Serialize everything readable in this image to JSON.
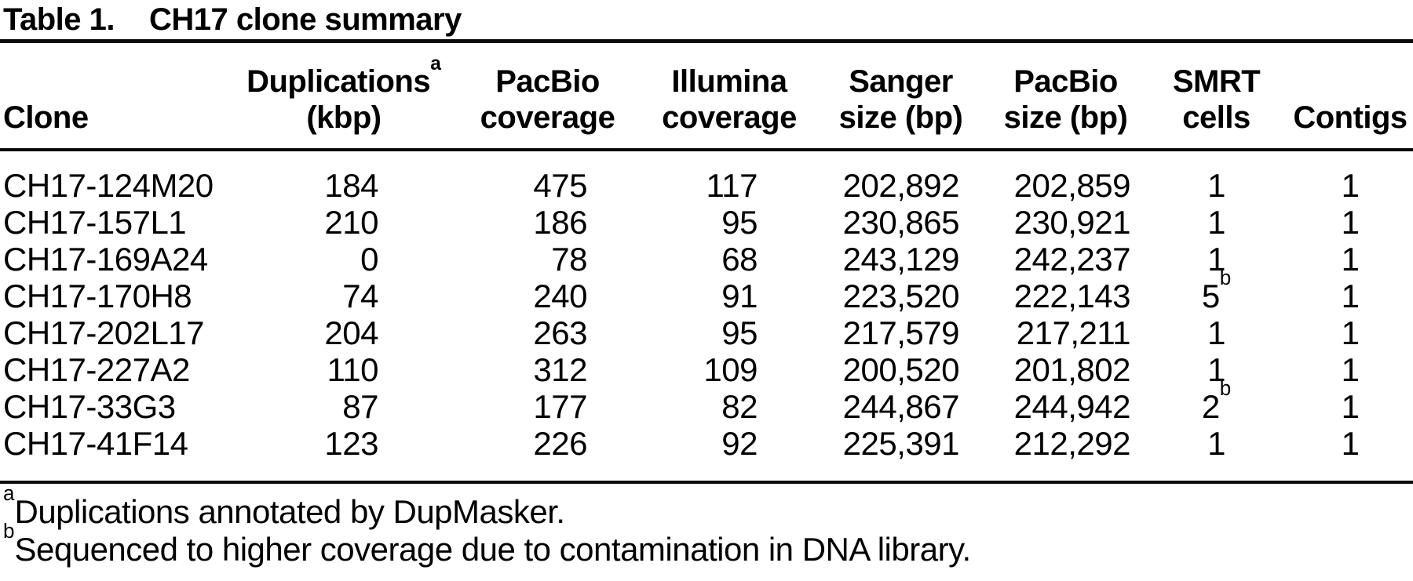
{
  "title": {
    "label": "Table 1.",
    "text": "CH17 clone summary"
  },
  "table": {
    "columns": [
      {
        "id": "clone",
        "header": [
          "Clone"
        ]
      },
      {
        "id": "duplications-kbp",
        "header": [
          "Duplications^a",
          "(kbp)"
        ]
      },
      {
        "id": "pacbio-coverage",
        "header": [
          "PacBio",
          "coverage"
        ]
      },
      {
        "id": "illumina-coverage",
        "header": [
          "Illumina",
          "coverage"
        ]
      },
      {
        "id": "sanger-size-bp",
        "header": [
          "Sanger",
          "size (bp)"
        ]
      },
      {
        "id": "pacbio-size-bp",
        "header": [
          "PacBio",
          "size (bp)"
        ]
      },
      {
        "id": "smrt-cells",
        "header": [
          "SMRT",
          "cells"
        ]
      },
      {
        "id": "contigs",
        "header": [
          "Contigs"
        ]
      }
    ],
    "rows": [
      [
        "CH17-124M20",
        "184",
        "475",
        "117",
        "202,892",
        "202,859",
        "1",
        "1"
      ],
      [
        "CH17-157L1",
        "210",
        "186",
        "95",
        "230,865",
        "230,921",
        "1",
        "1"
      ],
      [
        "CH17-169A24",
        "0",
        "78",
        "68",
        "243,129",
        "242,237",
        "1",
        "1"
      ],
      [
        "CH17-170H8",
        "74",
        "240",
        "91",
        "223,520",
        "222,143",
        "5^b",
        "1"
      ],
      [
        "CH17-202L17",
        "204",
        "263",
        "95",
        "217,579",
        "217,211",
        "1",
        "1"
      ],
      [
        "CH17-227A2",
        "110",
        "312",
        "109",
        "200,520",
        "201,802",
        "1",
        "1"
      ],
      [
        "CH17-33G3",
        "87",
        "177",
        "82",
        "244,867",
        "244,942",
        "2^b",
        "1"
      ],
      [
        "CH17-41F14",
        "123",
        "226",
        "92",
        "225,391",
        "212,292",
        "1",
        "1"
      ]
    ]
  },
  "footnotes": [
    {
      "marker": "a",
      "text": "Duplications annotated by DupMasker."
    },
    {
      "marker": "b",
      "text": "Sequenced to higher coverage due to contamination in DNA library."
    }
  ]
}
